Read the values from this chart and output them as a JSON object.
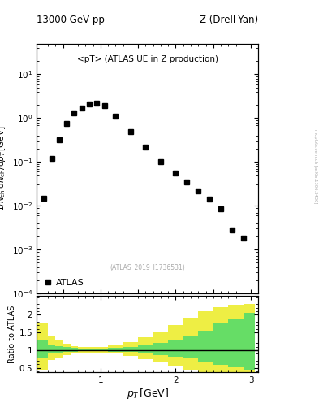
{
  "title_left": "13000 GeV pp",
  "title_right": "Z (Drell-Yan)",
  "main_label": "<pT> (ATLAS UE in Z production)",
  "atlas_label": "ATLAS_2019_I1736531",
  "legend_label": "ATLAS",
  "ylabel_main": "1/N_{ch} dN_{ch}/dp_T [GeV]",
  "ylabel_ratio": "Ratio to ATLAS",
  "xlabel": "p_T [GeV]",
  "watermark": "mcplots.cern.ch [arXiv:1306.3436]",
  "data_x": [
    0.25,
    0.35,
    0.45,
    0.55,
    0.65,
    0.75,
    0.85,
    0.95,
    1.05,
    1.2,
    1.4,
    1.6,
    1.8,
    2.0,
    2.15,
    2.3,
    2.45,
    2.6,
    2.75,
    2.9
  ],
  "data_y": [
    0.015,
    0.12,
    0.32,
    0.75,
    1.3,
    1.7,
    2.1,
    2.2,
    1.9,
    1.1,
    0.5,
    0.22,
    0.1,
    0.055,
    0.035,
    0.022,
    0.014,
    0.0085,
    0.0028,
    0.0018
  ],
  "ratio_x_edges": [
    0.15,
    0.3,
    0.4,
    0.5,
    0.6,
    0.7,
    0.8,
    0.9,
    1.0,
    1.1,
    1.3,
    1.5,
    1.7,
    1.9,
    2.1,
    2.3,
    2.5,
    2.7,
    2.9,
    3.05
  ],
  "ratio_green_lo": [
    0.78,
    0.9,
    0.93,
    0.95,
    0.96,
    0.97,
    0.97,
    0.97,
    0.97,
    0.96,
    0.94,
    0.91,
    0.87,
    0.82,
    0.76,
    0.68,
    0.58,
    0.52,
    0.45
  ],
  "ratio_green_hi": [
    1.28,
    1.16,
    1.11,
    1.08,
    1.06,
    1.05,
    1.05,
    1.05,
    1.05,
    1.07,
    1.1,
    1.14,
    1.2,
    1.28,
    1.38,
    1.55,
    1.75,
    1.9,
    2.05
  ],
  "ratio_yellow_lo": [
    0.45,
    0.72,
    0.8,
    0.87,
    0.91,
    0.93,
    0.93,
    0.93,
    0.93,
    0.9,
    0.84,
    0.75,
    0.65,
    0.54,
    0.44,
    0.37,
    0.32,
    0.28,
    0.27
  ],
  "ratio_yellow_hi": [
    1.75,
    1.4,
    1.28,
    1.18,
    1.12,
    1.1,
    1.09,
    1.09,
    1.09,
    1.14,
    1.23,
    1.36,
    1.52,
    1.7,
    1.92,
    2.1,
    2.22,
    2.28,
    2.3
  ],
  "ylim_main": [
    0.0001,
    50
  ],
  "ylim_ratio": [
    0.37,
    2.55
  ],
  "xlim": [
    0.15,
    3.1
  ],
  "color_green": "#66dd66",
  "color_yellow": "#eeee44",
  "marker_color": "black",
  "marker_size": 4.5
}
